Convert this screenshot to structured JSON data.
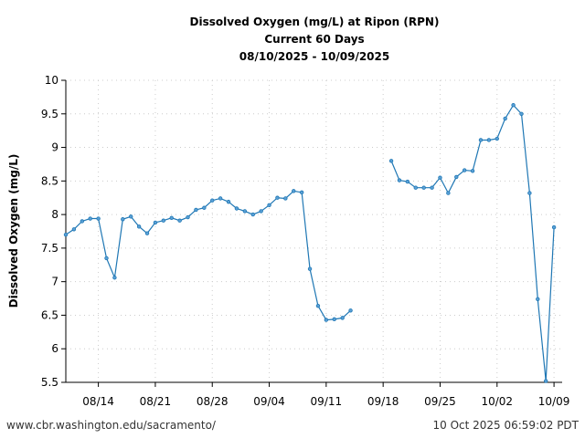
{
  "chart_data": {
    "type": "line",
    "title": [
      "Dissolved Oxygen (mg/L) at Ripon (RPN)",
      "Current 60 Days",
      "08/10/2025 - 10/09/2025"
    ],
    "xlabel": "",
    "ylabel": "Dissolved Oxygen (mg/L)",
    "ylim": [
      5.5,
      10
    ],
    "xlim_days_from_start": [
      0,
      61
    ],
    "yticks": [
      "5.5",
      "6",
      "6.5",
      "7",
      "7.5",
      "8",
      "8.5",
      "9",
      "9.5",
      "10"
    ],
    "xticks": [
      {
        "day": 4,
        "label": "08/14"
      },
      {
        "day": 11,
        "label": "08/21"
      },
      {
        "day": 18,
        "label": "08/28"
      },
      {
        "day": 25,
        "label": "09/04"
      },
      {
        "day": 32,
        "label": "09/11"
      },
      {
        "day": 39,
        "label": "09/18"
      },
      {
        "day": 46,
        "label": "09/25"
      },
      {
        "day": 53,
        "label": "10/02"
      },
      {
        "day": 60,
        "label": "10/09"
      }
    ],
    "grid": true,
    "series": [
      {
        "name": "Dissolved Oxygen",
        "color": "#1f77b4",
        "values": [
          7.7,
          7.78,
          7.9,
          7.94,
          7.94,
          7.35,
          7.06,
          7.93,
          7.97,
          7.82,
          7.72,
          7.88,
          7.91,
          7.95,
          7.91,
          7.96,
          8.07,
          8.1,
          8.21,
          8.24,
          8.19,
          8.09,
          8.05,
          8.0,
          8.05,
          8.14,
          8.25,
          8.24,
          8.35,
          8.33,
          7.19,
          6.64,
          6.43,
          6.44,
          6.46,
          6.57,
          null,
          null,
          null,
          null,
          8.8,
          8.51,
          8.49,
          8.4,
          8.4,
          8.4,
          8.55,
          8.32,
          8.56,
          8.66,
          8.65,
          9.11,
          9.11,
          9.13,
          9.43,
          9.63,
          9.5,
          8.32,
          6.74,
          5.52,
          7.81
        ]
      }
    ]
  },
  "footer": {
    "left": "www.cbr.washington.edu/sacramento/",
    "right": "10 Oct 2025 06:59:02 PDT"
  }
}
